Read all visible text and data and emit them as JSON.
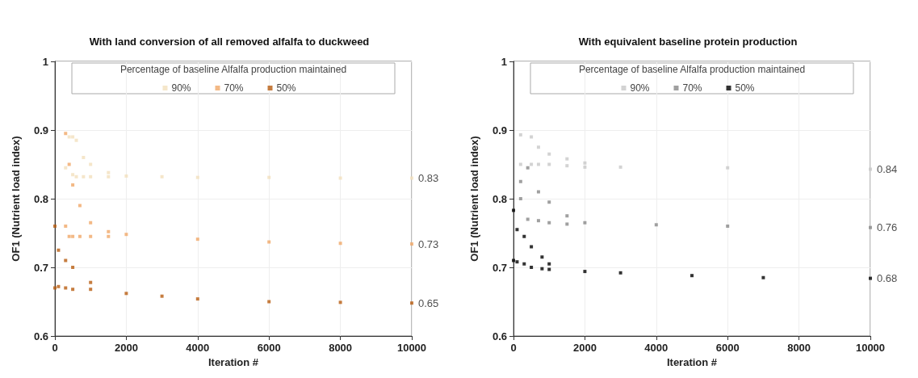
{
  "chart_data": [
    {
      "type": "scatter",
      "title": "With land conversion of all removed alfalfa to duckweed",
      "xlabel": "Iteration #",
      "ylabel": "OF1 (Nutrient load index)",
      "legend_title": "Percentage of baseline Alfalfa production maintained",
      "legend": "top",
      "grid": true,
      "marker": "square",
      "xlim": [
        0,
        10000
      ],
      "xticks": [
        0,
        2000,
        4000,
        6000,
        8000,
        10000
      ],
      "ylim": [
        0.6,
        1
      ],
      "yticks": [
        0.6,
        0.7,
        0.8,
        0.9,
        1
      ],
      "series": [
        {
          "name": "90%",
          "color": "#f2e0bd",
          "x": [
            400,
            300,
            500,
            500,
            600,
            600,
            800,
            800,
            1000,
            1000,
            1500,
            1500,
            2000,
            3000,
            4000,
            6000,
            8000,
            10000
          ],
          "values": [
            0.89,
            0.845,
            0.89,
            0.835,
            0.885,
            0.832,
            0.86,
            0.832,
            0.85,
            0.832,
            0.838,
            0.832,
            0.833,
            0.832,
            0.831,
            0.831,
            0.83,
            0.83
          ]
        },
        {
          "name": "70%",
          "color": "#f0a868",
          "x": [
            300,
            300,
            400,
            400,
            500,
            500,
            700,
            700,
            1000,
            1000,
            1500,
            1500,
            2000,
            4000,
            6000,
            8000,
            10000
          ],
          "values": [
            0.895,
            0.76,
            0.85,
            0.745,
            0.82,
            0.745,
            0.79,
            0.745,
            0.765,
            0.745,
            0.752,
            0.745,
            0.748,
            0.741,
            0.737,
            0.735,
            0.734
          ]
        },
        {
          "name": "50%",
          "color": "#b85c10",
          "x": [
            0,
            0,
            100,
            100,
            300,
            300,
            500,
            500,
            1000,
            1000,
            2000,
            3000,
            4000,
            6000,
            8000,
            10000
          ],
          "values": [
            0.76,
            0.67,
            0.725,
            0.672,
            0.71,
            0.67,
            0.7,
            0.668,
            0.678,
            0.668,
            0.662,
            0.658,
            0.654,
            0.65,
            0.649,
            0.648
          ]
        }
      ],
      "annotations": [
        "0.83",
        "0.73",
        "0.65"
      ]
    },
    {
      "type": "scatter",
      "title": "With equivalent baseline protein production",
      "xlabel": "Iteration #",
      "ylabel": "OF1 (Nutrient load index)",
      "legend_title": "Percentage of baseline Alfalfa production maintained",
      "legend": "top",
      "grid": true,
      "marker": "square",
      "xlim": [
        0,
        10000
      ],
      "xticks": [
        0,
        2000,
        4000,
        6000,
        8000,
        10000
      ],
      "ylim": [
        0.6,
        1
      ],
      "yticks": [
        0.6,
        0.7,
        0.8,
        0.9,
        1
      ],
      "series": [
        {
          "name": "90%",
          "color": "#c8c8c8",
          "x": [
            200,
            200,
            500,
            500,
            700,
            700,
            1000,
            1000,
            1500,
            1500,
            2000,
            2000,
            3000,
            6000,
            10000
          ],
          "values": [
            0.893,
            0.85,
            0.89,
            0.85,
            0.875,
            0.85,
            0.865,
            0.85,
            0.858,
            0.848,
            0.852,
            0.846,
            0.846,
            0.845,
            0.843
          ]
        },
        {
          "name": "70%",
          "color": "#888888",
          "x": [
            200,
            200,
            400,
            400,
            700,
            700,
            1000,
            1000,
            1500,
            1500,
            2000,
            4000,
            6000,
            10000
          ],
          "values": [
            0.825,
            0.8,
            0.845,
            0.77,
            0.81,
            0.768,
            0.795,
            0.765,
            0.775,
            0.763,
            0.765,
            0.762,
            0.76,
            0.758
          ]
        },
        {
          "name": "50%",
          "color": "#000000",
          "x": [
            0,
            0,
            100,
            100,
            300,
            300,
            500,
            500,
            800,
            800,
            1000,
            1000,
            2000,
            3000,
            5000,
            7000,
            10000
          ],
          "values": [
            0.783,
            0.71,
            0.755,
            0.708,
            0.745,
            0.705,
            0.73,
            0.7,
            0.715,
            0.698,
            0.705,
            0.697,
            0.694,
            0.692,
            0.688,
            0.685,
            0.684
          ]
        }
      ],
      "annotations": [
        "0.84",
        "0.76",
        "0.68"
      ]
    }
  ]
}
